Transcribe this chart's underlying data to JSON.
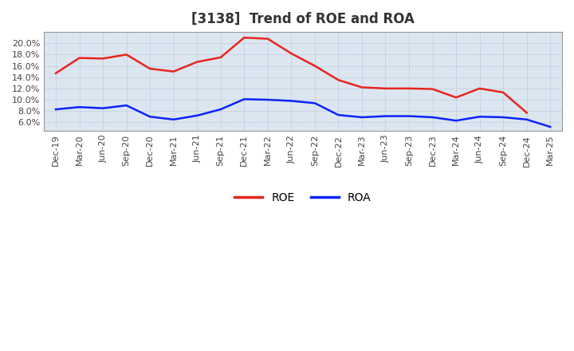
{
  "title": "[3138]  Trend of ROE and ROA",
  "x_labels": [
    "Dec-19",
    "Mar-20",
    "Jun-20",
    "Sep-20",
    "Dec-20",
    "Mar-21",
    "Jun-21",
    "Sep-21",
    "Dec-21",
    "Mar-22",
    "Jun-22",
    "Sep-22",
    "Dec-22",
    "Mar-23",
    "Jun-23",
    "Sep-23",
    "Dec-23",
    "Mar-24",
    "Jun-24",
    "Sep-24",
    "Dec-24",
    "Mar-25"
  ],
  "roe": [
    14.7,
    17.4,
    17.3,
    18.0,
    15.5,
    15.0,
    16.7,
    17.5,
    21.0,
    20.8,
    18.2,
    16.0,
    13.5,
    12.2,
    12.0,
    12.0,
    11.9,
    10.4,
    12.0,
    11.3,
    7.7,
    null
  ],
  "roa": [
    8.3,
    8.7,
    8.5,
    9.0,
    7.0,
    6.5,
    7.2,
    8.3,
    10.1,
    10.0,
    9.8,
    9.4,
    7.3,
    6.9,
    7.1,
    7.1,
    6.9,
    6.3,
    7.0,
    6.9,
    6.5,
    5.2
  ],
  "roe_color": "#e8251f",
  "roa_color": "#0b24fb",
  "background_color": "#ffffff",
  "plot_bg_color": "#dce6f0",
  "grid_color": "#aaaacc",
  "ylim": [
    4.5,
    22.0
  ],
  "yticks": [
    6.0,
    8.0,
    10.0,
    12.0,
    14.0,
    16.0,
    18.0,
    20.0
  ],
  "legend_labels": [
    "ROE",
    "ROA"
  ],
  "title_fontsize": 12,
  "axis_fontsize": 8,
  "legend_fontsize": 10
}
